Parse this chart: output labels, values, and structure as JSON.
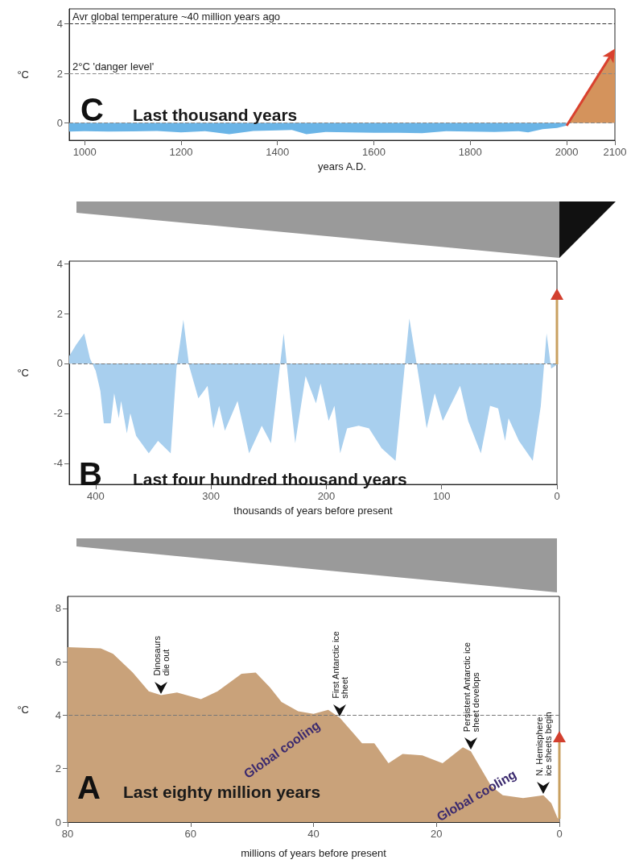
{
  "chart_data": [
    {
      "type": "area",
      "title": "Last thousand years",
      "annotations": [
        "C"
      ],
      "xlabel": "years A.D.",
      "ylabel": "°C",
      "xlim": [
        968,
        2100
      ],
      "ylim": [
        -0.7,
        4.6
      ],
      "xticks": [
        1000,
        1200,
        1400,
        1600,
        1800,
        2000,
        2100
      ],
      "yticks": [
        0,
        2,
        4
      ],
      "series": [
        {
          "color": "#6ab4e6",
          "x": [
            968,
            1000,
            1050,
            1100,
            1150,
            1200,
            1250,
            1300,
            1350,
            1400,
            1430,
            1460,
            1500,
            1550,
            1600,
            1650,
            1700,
            1750,
            1800,
            1850,
            1900,
            1920,
            1950,
            1980,
            2000
          ],
          "values": [
            -0.35,
            -0.33,
            -0.35,
            -0.34,
            -0.32,
            -0.38,
            -0.33,
            -0.45,
            -0.32,
            -0.3,
            -0.28,
            -0.45,
            -0.36,
            -0.38,
            -0.4,
            -0.4,
            -0.41,
            -0.33,
            -0.35,
            -0.36,
            -0.33,
            -0.38,
            -0.25,
            -0.2,
            -0.1
          ]
        },
        {
          "color": "#d4935c",
          "x": [
            2000,
            2100
          ],
          "values": [
            -0.1,
            3
          ]
        }
      ],
      "ref_lines": [
        {
          "axis": "y",
          "value": 4,
          "label": "Avr global temperature ~40 million years ago",
          "color": "#333333",
          "line_style": "dashed"
        },
        {
          "axis": "y",
          "value": 2,
          "label": "2°C 'danger level'",
          "color": "#888888",
          "line_style": "dashed"
        },
        {
          "axis": "y",
          "value": 0,
          "label": null,
          "color": "#888888",
          "line_style": "dashed"
        }
      ]
    },
    {
      "type": "area",
      "title": "Last four hundred thousand years",
      "annotations": [
        "B"
      ],
      "xlabel": "thousands of years before present",
      "ylabel": "°C",
      "xlim": [
        423,
        0
      ],
      "ylim": [
        -4.85,
        4.1
      ],
      "xticks": [
        400,
        300,
        200,
        100,
        0
      ],
      "yticks": [
        -4,
        -2,
        0,
        2,
        4
      ],
      "series": [
        {
          "color": "#a8cfee",
          "x": [
            423,
            417,
            410,
            405,
            400,
            396,
            393,
            387,
            384,
            380,
            378,
            373,
            370,
            365,
            354,
            346,
            335,
            330,
            324,
            319,
            311,
            303,
            298,
            293,
            288,
            277,
            267,
            256,
            248,
            237,
            232,
            227,
            218,
            209,
            205,
            198,
            193,
            188,
            182,
            172,
            163,
            152,
            140,
            128,
            120,
            113,
            106,
            99,
            84,
            77,
            66,
            58,
            51,
            45,
            42,
            33,
            21,
            14,
            9,
            5,
            0
          ],
          "values": [
            0.3,
            0.75,
            1.2,
            0.2,
            -0.3,
            -1.1,
            -2.4,
            -2.4,
            -1.2,
            -2.2,
            -1.5,
            -2.8,
            -2,
            -2.9,
            -3.6,
            -3.1,
            -3.6,
            -0.2,
            1.75,
            -0.1,
            -1.4,
            -0.9,
            -2.6,
            -1.7,
            -2.7,
            -1.5,
            -3.6,
            -2.5,
            -3.2,
            1.2,
            -1.1,
            -3.2,
            -0.5,
            -1.6,
            -0.8,
            -2.3,
            -1.7,
            -3.6,
            -2.6,
            -2.5,
            -2.6,
            -3.4,
            -3.9,
            1.8,
            -0.5,
            -2.6,
            -1.2,
            -2.3,
            -0.9,
            -2.3,
            -3.6,
            -1.7,
            -1.8,
            -3.1,
            -2.2,
            -3.1,
            -3.9,
            -1.7,
            1.2,
            -0.2,
            -0.05
          ]
        }
      ],
      "ref_lines": [
        {
          "axis": "y",
          "value": 0,
          "label": null,
          "color": "#777777",
          "line_style": "dashed"
        }
      ]
    },
    {
      "type": "area",
      "title": "Last eighty million years",
      "annotations": [
        "A",
        "Global cooling",
        "Global cooling",
        {
          "text": "Dinosaurs die out",
          "x": 64.8,
          "y": 4.75
        },
        {
          "text": "First Antarctic ice sheet",
          "x": 35.7,
          "y": 3.9
        },
        {
          "text": "Persistent Antarctic ice sheet develops",
          "x": 14.4,
          "y": 2.65
        },
        {
          "text": "N. Hemisphere ice sheets begin",
          "x": 2.6,
          "y": 1
        }
      ],
      "xlabel": "millions of years before present",
      "ylabel": "°C",
      "xlim": [
        80,
        0
      ],
      "ylim": [
        0,
        8.45
      ],
      "xticks": [
        80,
        60,
        40,
        20,
        0
      ],
      "yticks": [
        0,
        2,
        4,
        6,
        8
      ],
      "series": [
        {
          "color": "#c9a27a",
          "x": [
            80,
            74.6,
            72.6,
            69.4,
            66.8,
            64.8,
            62.2,
            58.3,
            55.6,
            51.7,
            49.4,
            47.1,
            45.2,
            42.5,
            40,
            37.6,
            35.7,
            33.4,
            32.1,
            30.1,
            27.8,
            25.5,
            22.3,
            19,
            15.7,
            14.4,
            11.1,
            9.2,
            5.9,
            2.6,
            1.3,
            0.3,
            0
          ],
          "values": [
            6.55,
            6.5,
            6.3,
            5.6,
            4.9,
            4.75,
            4.85,
            4.6,
            4.9,
            5.55,
            5.6,
            5.05,
            4.5,
            4.15,
            4.05,
            4.2,
            3.9,
            3.3,
            2.95,
            2.95,
            2.2,
            2.55,
            2.5,
            2.2,
            2.8,
            2.65,
            1.35,
            1,
            0.9,
            1,
            0.7,
            0.15,
            0.1
          ]
        }
      ],
      "ref_lines": [
        {
          "axis": "y",
          "value": 4,
          "label": null,
          "color": "#777777",
          "line_style": "dashed"
        }
      ]
    }
  ]
}
